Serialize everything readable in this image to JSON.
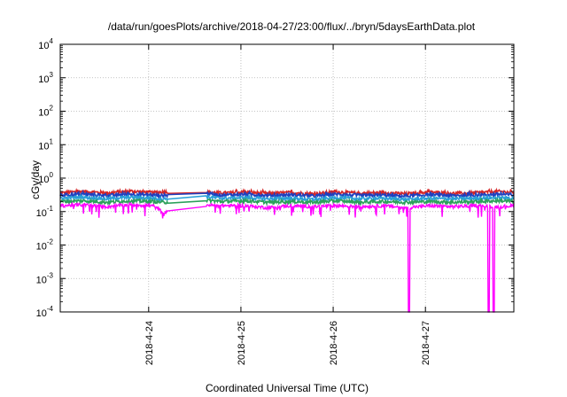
{
  "chart_data": {
    "type": "line",
    "title": "/data/run/goesPlots/archive/2018-04-27/23:00/flux/../bryn/5daysEarthData.plot",
    "xlabel": "Coordinated Universal Time (UTC)",
    "ylabel": "cGy/day",
    "y_scale": "log",
    "xlim": [
      "2018-04-23T01:00",
      "2018-04-27T23:00"
    ],
    "ylim": [
      0.0001,
      10000
    ],
    "grid": true,
    "x_ticks": [
      "2018-4-24",
      "2018-4-25",
      "2018-4-26",
      "2018-4-27"
    ],
    "y_ticks": [
      {
        "base": "10",
        "exp": "-4",
        "value": 0.0001
      },
      {
        "base": "10",
        "exp": "-3",
        "value": 0.001
      },
      {
        "base": "10",
        "exp": "-2",
        "value": 0.01
      },
      {
        "base": "10",
        "exp": "-1",
        "value": 0.1
      },
      {
        "base": "10",
        "exp": "0",
        "value": 1
      },
      {
        "base": "10",
        "exp": "1",
        "value": 10
      },
      {
        "base": "10",
        "exp": "2",
        "value": 100
      },
      {
        "base": "10",
        "exp": "3",
        "value": 1000
      },
      {
        "base": "10",
        "exp": "4",
        "value": 10000
      }
    ],
    "gap": [
      "2018-04-24T05:00",
      "2018-04-24T15:00"
    ],
    "dropouts": [
      "2018-04-26T19:45",
      "2018-04-27T16:30",
      "2018-04-27T17:45"
    ],
    "series": [
      {
        "color": "#d62728",
        "values": [
          [
            0,
            0.36
          ],
          [
            0.25,
            0.4
          ],
          [
            0.5,
            0.36
          ],
          [
            0.75,
            0.41
          ],
          [
            1.0,
            0.37
          ],
          [
            1.12,
            0.39
          ],
          [
            1.55,
            0.39
          ],
          [
            1.75,
            0.36
          ],
          [
            2.0,
            0.38
          ],
          [
            2.25,
            0.35
          ],
          [
            2.5,
            0.37
          ],
          [
            2.75,
            0.34
          ],
          [
            3.0,
            0.39
          ],
          [
            3.25,
            0.35
          ],
          [
            3.5,
            0.37
          ],
          [
            3.75,
            0.34
          ],
          [
            4.0,
            0.38
          ],
          [
            4.25,
            0.35
          ],
          [
            4.5,
            0.36
          ],
          [
            4.75,
            0.4
          ],
          [
            4.92,
            0.37
          ]
        ]
      },
      {
        "color": "#1f3fbf",
        "values": [
          [
            0,
            0.31
          ],
          [
            0.25,
            0.33
          ],
          [
            0.5,
            0.3
          ],
          [
            0.75,
            0.33
          ],
          [
            1.0,
            0.31
          ],
          [
            1.12,
            0.3
          ],
          [
            1.55,
            0.36
          ],
          [
            1.75,
            0.31
          ],
          [
            2.0,
            0.33
          ],
          [
            2.25,
            0.3
          ],
          [
            2.5,
            0.32
          ],
          [
            2.75,
            0.29
          ],
          [
            3.0,
            0.33
          ],
          [
            3.25,
            0.3
          ],
          [
            3.5,
            0.31
          ],
          [
            3.75,
            0.29
          ],
          [
            4.0,
            0.32
          ],
          [
            4.25,
            0.3
          ],
          [
            4.5,
            0.31
          ],
          [
            4.75,
            0.33
          ],
          [
            4.92,
            0.31
          ]
        ]
      },
      {
        "color": "#2aa0d8",
        "values": [
          [
            0,
            0.25
          ],
          [
            0.25,
            0.27
          ],
          [
            0.5,
            0.24
          ],
          [
            0.75,
            0.27
          ],
          [
            1.0,
            0.25
          ],
          [
            1.12,
            0.24
          ],
          [
            1.55,
            0.28
          ],
          [
            1.75,
            0.25
          ],
          [
            2.0,
            0.26
          ],
          [
            2.25,
            0.24
          ],
          [
            2.5,
            0.25
          ],
          [
            2.75,
            0.23
          ],
          [
            3.0,
            0.26
          ],
          [
            3.25,
            0.24
          ],
          [
            3.5,
            0.25
          ],
          [
            3.75,
            0.23
          ],
          [
            4.0,
            0.25
          ],
          [
            4.25,
            0.24
          ],
          [
            4.5,
            0.25
          ],
          [
            4.75,
            0.26
          ],
          [
            4.92,
            0.25
          ]
        ]
      },
      {
        "color": "#2ca05a",
        "values": [
          [
            0,
            0.2
          ],
          [
            0.25,
            0.21
          ],
          [
            0.5,
            0.19
          ],
          [
            0.75,
            0.21
          ],
          [
            1.0,
            0.2
          ],
          [
            1.12,
            0.19
          ],
          [
            1.55,
            0.22
          ],
          [
            1.75,
            0.2
          ],
          [
            2.0,
            0.21
          ],
          [
            2.25,
            0.19
          ],
          [
            2.5,
            0.2
          ],
          [
            2.75,
            0.19
          ],
          [
            3.0,
            0.21
          ],
          [
            3.25,
            0.19
          ],
          [
            3.5,
            0.2
          ],
          [
            3.75,
            0.19
          ],
          [
            4.0,
            0.2
          ],
          [
            4.25,
            0.19
          ],
          [
            4.5,
            0.2
          ],
          [
            4.75,
            0.21
          ],
          [
            4.92,
            0.2
          ]
        ]
      },
      {
        "color": "#ff00ff",
        "values": [
          [
            0,
            0.15
          ],
          [
            0.25,
            0.16
          ],
          [
            0.5,
            0.14
          ],
          [
            0.75,
            0.16
          ],
          [
            1.0,
            0.15
          ],
          [
            1.12,
            0.09
          ],
          [
            1.55,
            0.16
          ],
          [
            1.75,
            0.15
          ],
          [
            2.0,
            0.15
          ],
          [
            2.25,
            0.13
          ],
          [
            2.5,
            0.15
          ],
          [
            2.75,
            0.14
          ],
          [
            3.0,
            0.15
          ],
          [
            3.25,
            0.14
          ],
          [
            3.5,
            0.15
          ],
          [
            3.75,
            0.13
          ],
          [
            4.0,
            0.15
          ],
          [
            4.25,
            0.14
          ],
          [
            4.5,
            0.15
          ],
          [
            4.75,
            0.14
          ],
          [
            4.92,
            0.15
          ]
        ]
      }
    ]
  }
}
